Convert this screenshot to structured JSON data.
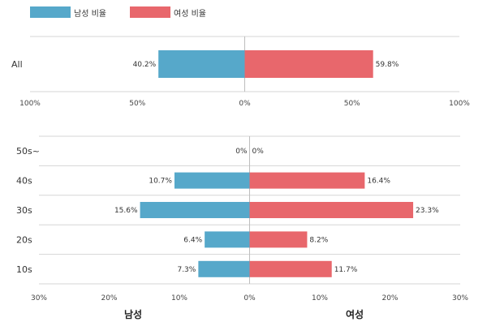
{
  "legend": {
    "male_label": "남성 비율",
    "female_label": "여성 비율",
    "male_color": "#56a8ca",
    "female_color": "#e8676c"
  },
  "chart_data": [
    {
      "type": "bar",
      "orientation": "horizontal-diverging",
      "categories": [
        "All"
      ],
      "series": [
        {
          "name": "남성 비율",
          "values": [
            40.2
          ],
          "side": "left"
        },
        {
          "name": "여성 비율",
          "values": [
            59.8
          ],
          "side": "right"
        }
      ],
      "data_labels": {
        "male": [
          "40.2%"
        ],
        "female": [
          "59.8%"
        ]
      },
      "xlim": [
        -100,
        100
      ],
      "xticks": [
        "100%",
        "50%",
        "0%",
        "50%",
        "100%"
      ],
      "grid": true
    },
    {
      "type": "bar",
      "orientation": "horizontal-diverging",
      "categories": [
        "50s~",
        "40s",
        "30s",
        "20s",
        "10s"
      ],
      "series": [
        {
          "name": "남성 비율",
          "values": [
            0,
            10.7,
            15.6,
            6.4,
            7.3
          ],
          "side": "left"
        },
        {
          "name": "여성 비율",
          "values": [
            0,
            16.4,
            23.3,
            8.2,
            11.7
          ],
          "side": "right"
        }
      ],
      "data_labels": {
        "male": [
          "0%",
          "10.7%",
          "15.6%",
          "6.4%",
          "7.3%"
        ],
        "female": [
          "0%",
          "16.4%",
          "23.3%",
          "8.2%",
          "11.7%"
        ]
      },
      "xlim": [
        -30,
        30
      ],
      "xticks": [
        "30%",
        "20%",
        "10%",
        "0%",
        "10%",
        "20%",
        "30%"
      ],
      "xlabel_left": "남성",
      "xlabel_right": "여성",
      "grid": true
    }
  ]
}
